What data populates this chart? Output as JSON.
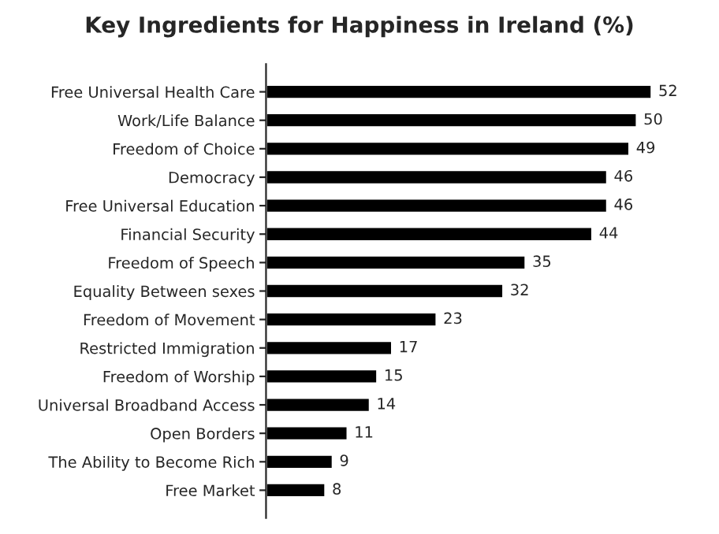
{
  "chart_data": {
    "type": "bar",
    "orientation": "horizontal",
    "title": "Key Ingredients for Happiness in Ireland (%)",
    "categories": [
      "Free Universal Health Care",
      "Work/Life Balance",
      "Freedom of Choice",
      "Democracy",
      "Free Universal Education",
      "Financial Security",
      "Freedom of Speech",
      "Equality Between sexes",
      "Freedom of Movement",
      "Restricted Immigration",
      "Freedom of Worship",
      "Universal Broadband Access",
      "Open Borders",
      "The Ability to Become Rich",
      "Free Market"
    ],
    "values": [
      52,
      50,
      49,
      46,
      46,
      44,
      35,
      32,
      23,
      17,
      15,
      14,
      11,
      9,
      8
    ],
    "color": "#000000",
    "data_labels": true,
    "grid": false,
    "legend": false
  }
}
